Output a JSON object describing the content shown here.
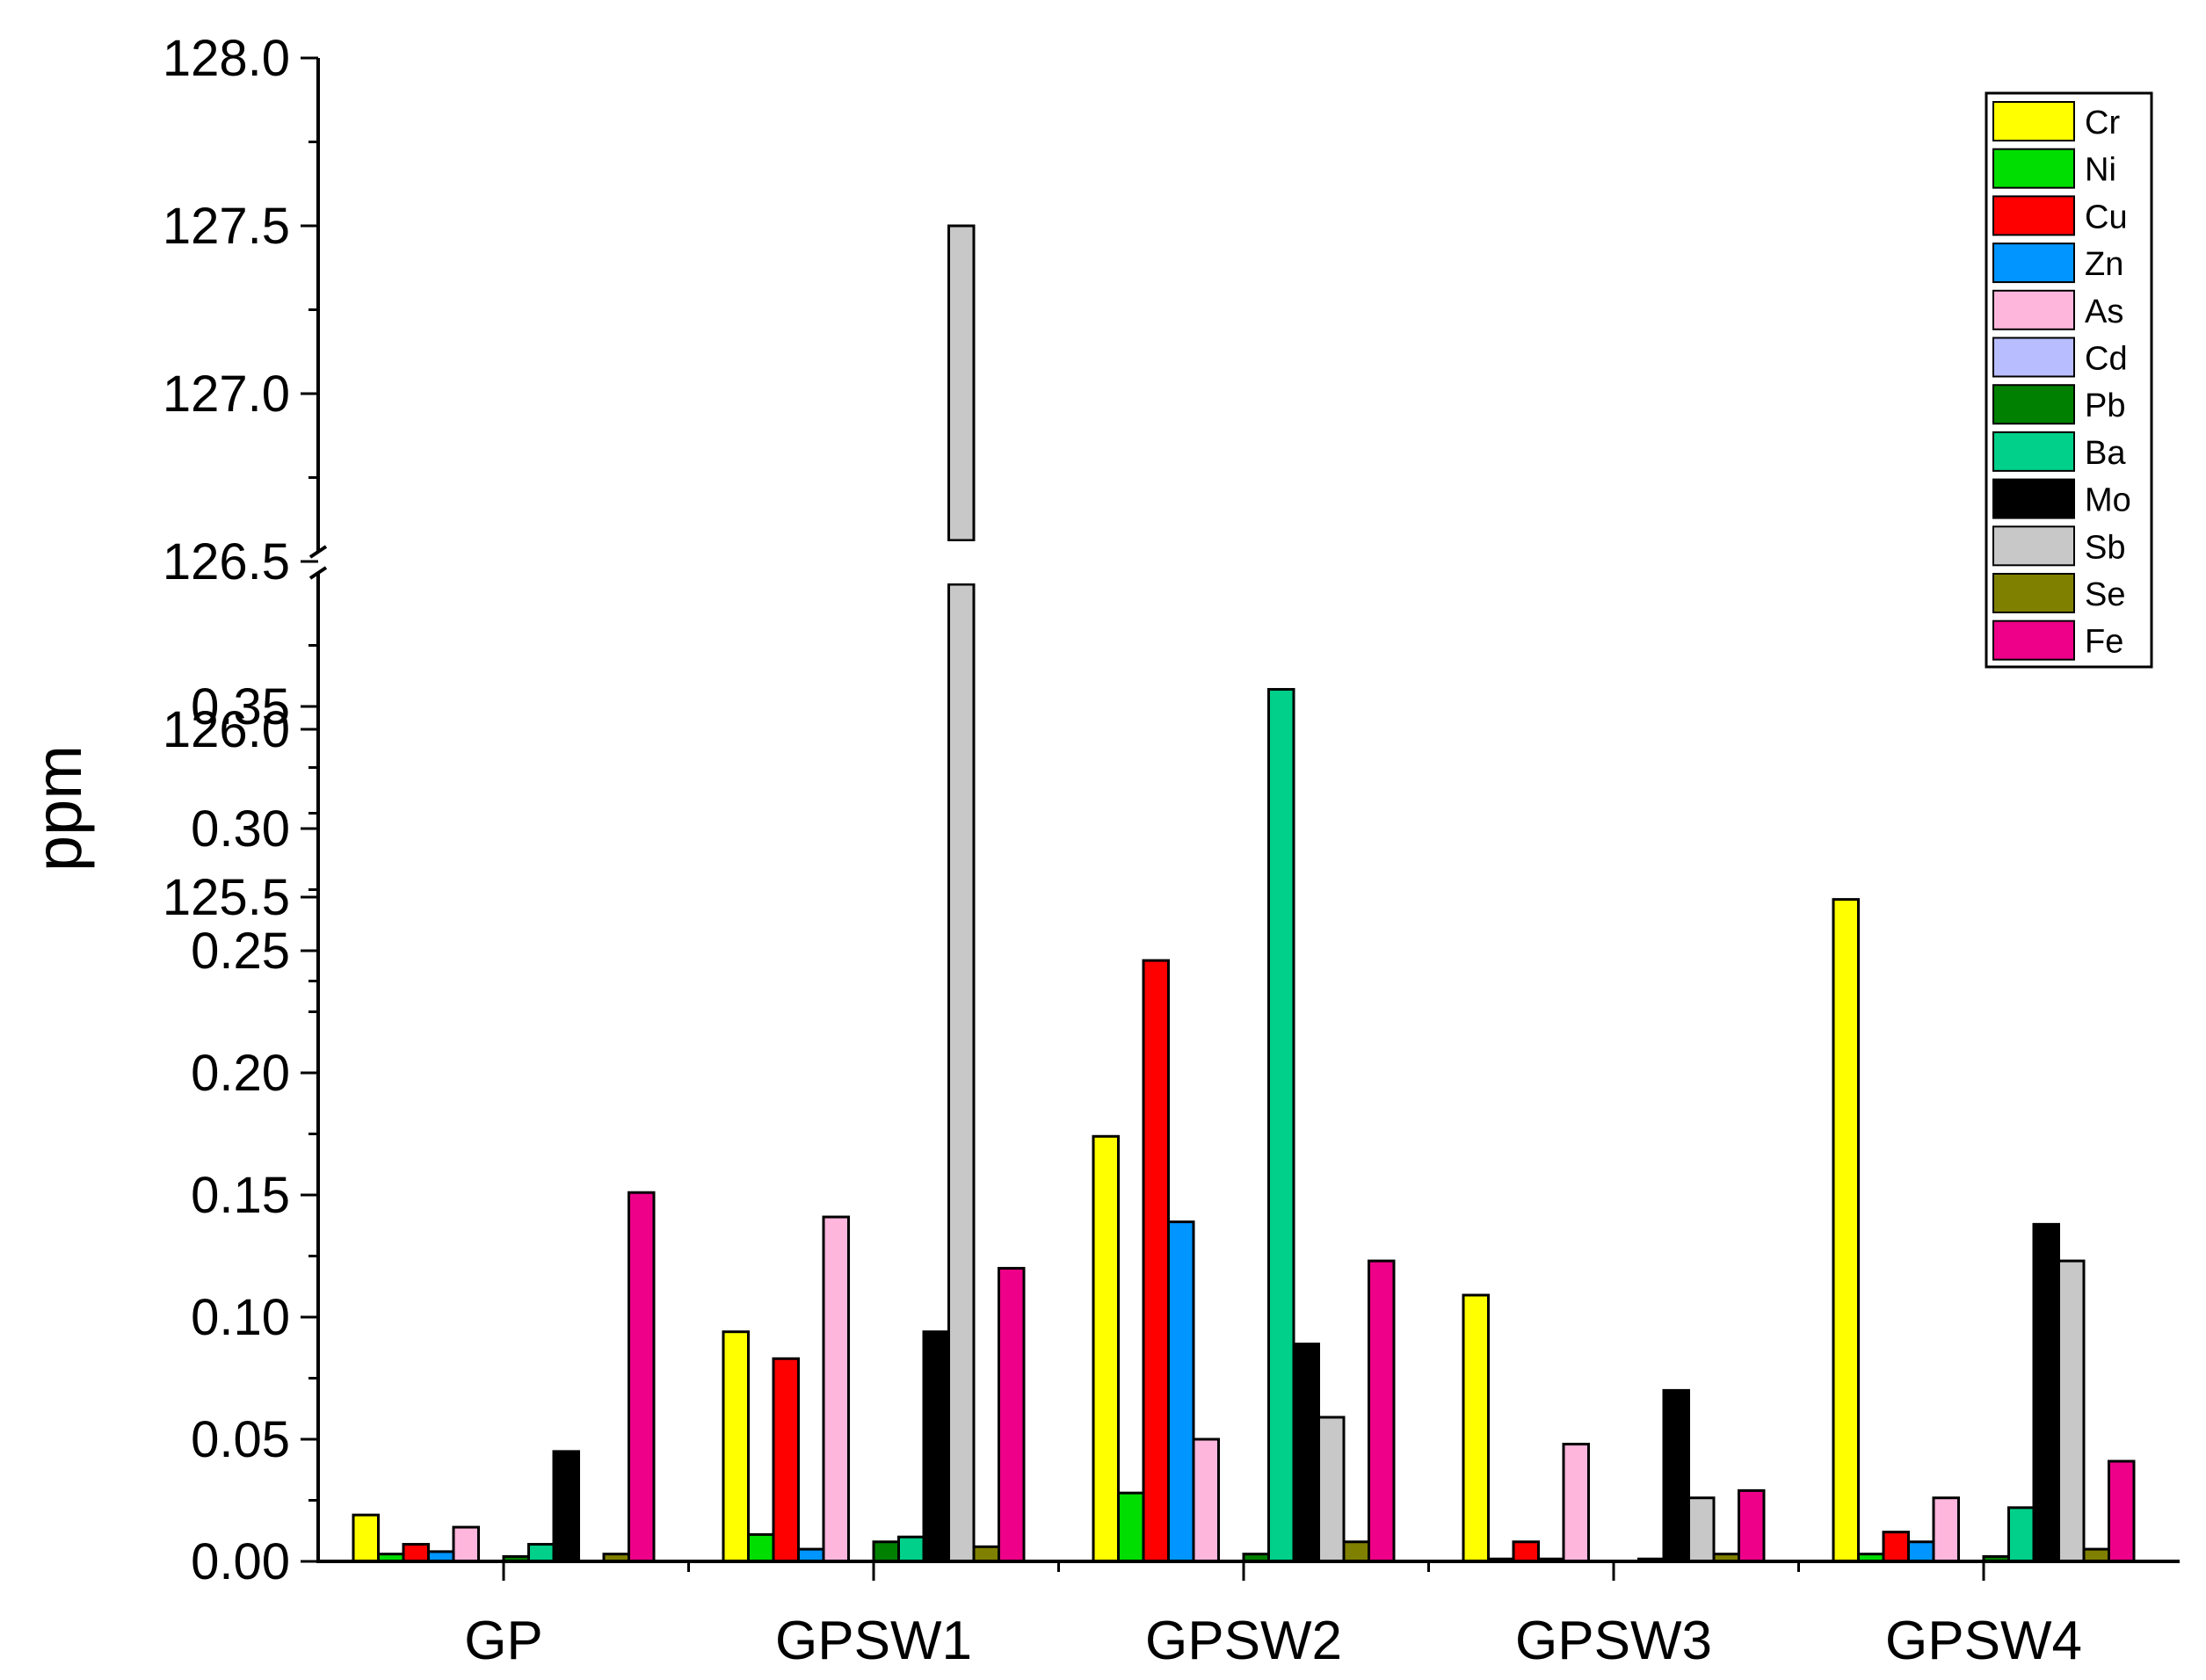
{
  "chart_data": {
    "type": "bar",
    "ylabel": "ppm",
    "xlabel": "",
    "categories": [
      "GP",
      "GPSW1",
      "GPSW2",
      "GPSW3",
      "GPSW4"
    ],
    "y_axis_break": {
      "lower_range": [
        0,
        0.39
      ],
      "upper_range": [
        125.1,
        128.0
      ]
    },
    "lower_ticks": [
      "0.00",
      "0.05",
      "0.10",
      "0.15",
      "0.20",
      "0.25",
      "0.30",
      "0.35"
    ],
    "upper_ticks": [
      "125.5",
      "126.0",
      "126.5",
      "127.0",
      "127.5",
      "128.0"
    ],
    "legend_position": "top-right",
    "series": [
      {
        "name": "Cr",
        "color": "#ffff00",
        "values": [
          0.019,
          0.094,
          0.174,
          0.109,
          0.271
        ]
      },
      {
        "name": "Ni",
        "color": "#00dd00",
        "values": [
          0.003,
          0.011,
          0.028,
          0.001,
          0.003
        ]
      },
      {
        "name": "Cu",
        "color": "#ff0000",
        "values": [
          0.007,
          0.083,
          0.246,
          0.008,
          0.012
        ]
      },
      {
        "name": "Zn",
        "color": "#0095ff",
        "values": [
          0.004,
          0.005,
          0.139,
          0.001,
          0.008
        ]
      },
      {
        "name": "As",
        "color": "#ffb6dd",
        "values": [
          0.014,
          0.141,
          0.05,
          0.048,
          0.026
        ]
      },
      {
        "name": "Cd",
        "color": "#b8bdff",
        "values": [
          0.0,
          0.0,
          0.0,
          0.0,
          0.0
        ]
      },
      {
        "name": "Pb",
        "color": "#008000",
        "values": [
          0.002,
          0.008,
          0.003,
          0.0,
          0.002
        ]
      },
      {
        "name": "Ba",
        "color": "#00d08a",
        "values": [
          0.007,
          0.01,
          0.357,
          0.001,
          0.022
        ]
      },
      {
        "name": "Mo",
        "color": "#000000",
        "values": [
          0.045,
          0.094,
          0.089,
          0.07,
          0.138
        ]
      },
      {
        "name": "Sb",
        "color": "#c8c8c8",
        "values": [
          0.0,
          127.5,
          0.059,
          0.026,
          0.123
        ]
      },
      {
        "name": "Se",
        "color": "#808000",
        "values": [
          0.003,
          0.006,
          0.008,
          0.003,
          0.005
        ]
      },
      {
        "name": "Fe",
        "color": "#ee0088",
        "values": [
          0.151,
          0.12,
          0.123,
          0.029,
          0.041
        ]
      }
    ]
  }
}
